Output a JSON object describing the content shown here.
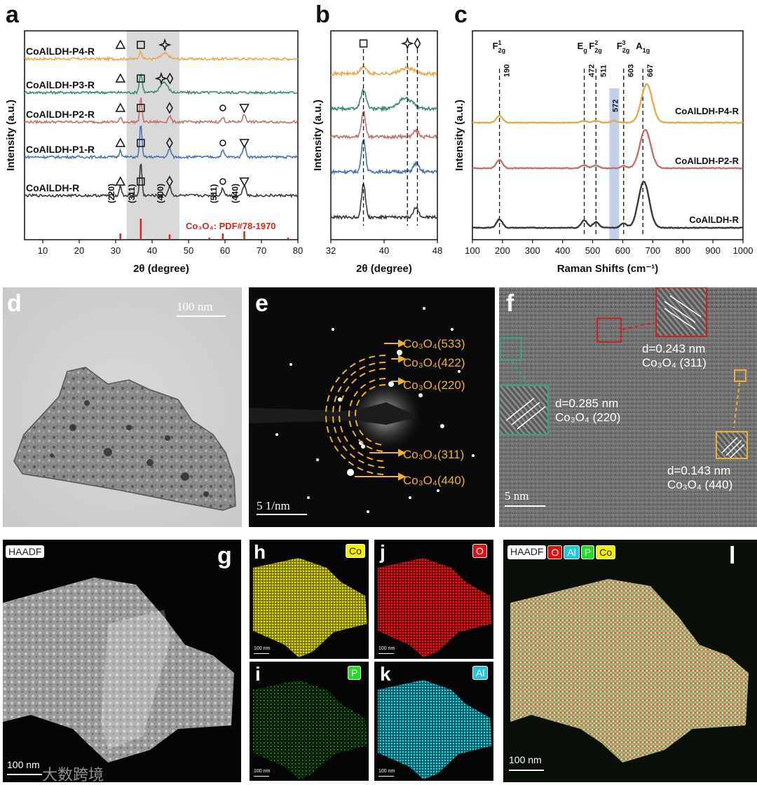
{
  "panel_labels": {
    "a": "a",
    "b": "b",
    "c": "c",
    "d": "d",
    "e": "e",
    "f": "f",
    "g": "g",
    "h": "h",
    "i": "i",
    "j": "j",
    "k": "k",
    "l": "l"
  },
  "colors": {
    "orange": "#E8A94B",
    "green": "#3E8A6A",
    "red": "#C47070",
    "blue": "#4C72B0",
    "black": "#3A3A3A",
    "pdf_red": "#D9261C",
    "shade": "#D9D9D9",
    "ann_orange": "#F0B030",
    "ann_green": "#3AA57B",
    "ann_red": "#CC2222"
  },
  "chart_data": [
    {
      "type": "line",
      "panel": "a",
      "xlabel": "2θ (degree)",
      "ylabel": "Intensity (a.u.)",
      "xlim": [
        5,
        80
      ],
      "xticks": [
        10,
        20,
        30,
        40,
        50,
        60,
        70,
        80
      ],
      "shaded_range": [
        33,
        47.5
      ],
      "series": [
        {
          "name": "CoAlLDH-P4-R",
          "color": "#E8A94B",
          "peaks": [
            {
              "x": 36.9,
              "h": 0.35,
              "w": 0.8
            },
            {
              "x": 43.5,
              "h": 0.25,
              "w": 2.0
            }
          ],
          "markers": [
            "triangle",
            "square",
            "star"
          ]
        },
        {
          "name": "CoAlLDH-P3-R",
          "color": "#3E8A6A",
          "peaks": [
            {
              "x": 36.9,
              "h": 0.9,
              "w": 0.8
            },
            {
              "x": 43.2,
              "h": 0.5,
              "w": 2.0
            }
          ],
          "markers": [
            "triangle",
            "square",
            "star",
            "diamond"
          ]
        },
        {
          "name": "CoAlLDH-P2-R",
          "color": "#C47070",
          "peaks": [
            {
              "x": 31.3,
              "h": 0.2,
              "w": 0.6
            },
            {
              "x": 36.9,
              "h": 1.2,
              "w": 0.6
            },
            {
              "x": 44.8,
              "h": 0.3,
              "w": 0.8
            },
            {
              "x": 59.4,
              "h": 0.2,
              "w": 0.8
            },
            {
              "x": 65.3,
              "h": 0.35,
              "w": 0.9
            }
          ],
          "markers": [
            "triangle",
            "square",
            "diamond",
            "circle",
            "down-triangle"
          ]
        },
        {
          "name": "CoAlLDH-P1-R",
          "color": "#4C72B0",
          "peaks": [
            {
              "x": 31.3,
              "h": 0.35,
              "w": 0.6
            },
            {
              "x": 36.9,
              "h": 1.6,
              "w": 0.6
            },
            {
              "x": 44.8,
              "h": 0.4,
              "w": 0.8
            },
            {
              "x": 59.4,
              "h": 0.3,
              "w": 0.8
            },
            {
              "x": 65.3,
              "h": 0.55,
              "w": 0.9
            }
          ],
          "markers": [
            "triangle",
            "square",
            "diamond",
            "circle",
            "down-triangle"
          ]
        },
        {
          "name": "CoAlLDH-R",
          "color": "#3A3A3A",
          "peaks": [
            {
              "x": 31.3,
              "h": 0.5,
              "w": 0.6
            },
            {
              "x": 36.9,
              "h": 1.6,
              "w": 0.6
            },
            {
              "x": 44.8,
              "h": 0.45,
              "w": 0.8
            },
            {
              "x": 59.4,
              "h": 0.35,
              "w": 0.8
            },
            {
              "x": 65.3,
              "h": 0.5,
              "w": 0.9
            }
          ],
          "markers": [
            "triangle",
            "square",
            "diamond",
            "circle",
            "down-triangle"
          ]
        }
      ],
      "hkl_labels": [
        {
          "x": 31.3,
          "text": "(220)"
        },
        {
          "x": 36.9,
          "text": "(311)"
        },
        {
          "x": 44.8,
          "text": "(400)"
        },
        {
          "x": 59.4,
          "text": "(511)"
        },
        {
          "x": 65.3,
          "text": "(440)"
        }
      ],
      "reference": {
        "label": "Co₃O₄: PDF#78-1970",
        "lines": [
          {
            "x": 31.3,
            "h": 0.3
          },
          {
            "x": 36.9,
            "h": 1.0
          },
          {
            "x": 44.8,
            "h": 0.25
          },
          {
            "x": 55.7,
            "h": 0.1
          },
          {
            "x": 59.4,
            "h": 0.3
          },
          {
            "x": 65.3,
            "h": 0.4
          },
          {
            "x": 77.3,
            "h": 0.1
          }
        ]
      }
    },
    {
      "type": "line",
      "panel": "b",
      "xlabel": "2θ (degree)",
      "ylabel": "Intensity (a.u.)",
      "xlim": [
        32,
        48
      ],
      "xticks": [
        32,
        40,
        48
      ],
      "dashed_lines": [
        36.9,
        43.5,
        45.0
      ],
      "top_markers": [
        {
          "x": 36.9,
          "symbol": "square"
        },
        {
          "x": 43.5,
          "symbol": "star"
        },
        {
          "x": 45.0,
          "symbol": "diamond"
        }
      ]
    },
    {
      "type": "line",
      "panel": "c",
      "xlabel": "Raman Shifts (cm⁻¹)",
      "ylabel": "Intensity (a.u.)",
      "xlim": [
        100,
        1000
      ],
      "xticks": [
        100,
        200,
        300,
        400,
        500,
        600,
        700,
        800,
        900,
        1000
      ],
      "highlight": {
        "x": 572,
        "label": "572"
      },
      "modes": [
        {
          "x": 190,
          "sym": "F",
          "sup": "1",
          "sub": "2g",
          "val": "190"
        },
        {
          "x": 472,
          "sym": "E",
          "sup": "",
          "sub": "g",
          "val": "472"
        },
        {
          "x": 511,
          "sym": "F",
          "sup": "2",
          "sub": "2g",
          "val": "511"
        },
        {
          "x": 603,
          "sym": "F",
          "sup": "3",
          "sub": "2g",
          "val": "603"
        },
        {
          "x": 667,
          "sym": "A",
          "sup": "",
          "sub": "1g",
          "val": "667"
        }
      ],
      "series": [
        {
          "name": "CoAlLDH-P4-R",
          "color": "#E8A94B",
          "peaks": [
            {
              "x": 190,
              "h": 0.18
            },
            {
              "x": 472,
              "h": 0.05
            },
            {
              "x": 511,
              "h": 0.05
            },
            {
              "x": 572,
              "h": 0.05
            },
            {
              "x": 680,
              "h": 1.0
            }
          ]
        },
        {
          "name": "CoAlLDH-P2-R",
          "color": "#C47070",
          "peaks": [
            {
              "x": 190,
              "h": 0.22
            },
            {
              "x": 472,
              "h": 0.08
            },
            {
              "x": 511,
              "h": 0.08
            },
            {
              "x": 603,
              "h": 0.06
            },
            {
              "x": 675,
              "h": 1.0
            }
          ]
        },
        {
          "name": "CoAlLDH-R",
          "color": "#3A3A3A",
          "peaks": [
            {
              "x": 190,
              "h": 0.22
            },
            {
              "x": 472,
              "h": 0.2
            },
            {
              "x": 511,
              "h": 0.15
            },
            {
              "x": 603,
              "h": 0.12
            },
            {
              "x": 670,
              "h": 1.2
            }
          ]
        }
      ]
    }
  ],
  "panel_d": {
    "scalebar": "100 nm"
  },
  "panel_e": {
    "scalebar": "5 1/nm",
    "rings": [
      "Co₃O₄(533)",
      "Co₃O₄(422)",
      "Co₃O₄(220)",
      "Co₃O₄(311)",
      "Co₃O₄(440)"
    ]
  },
  "panel_f": {
    "scalebar": "5 nm",
    "annotations": [
      {
        "d": "d=0.243 nm",
        "plane": "Co₃O₄ (311)"
      },
      {
        "d": "d=0.285 nm",
        "plane": "Co₃O₄ (220)"
      },
      {
        "d": "d=0.143 nm",
        "plane": "Co₃O₄ (440)"
      }
    ]
  },
  "panel_g": {
    "tag": "HAADF",
    "scalebar": "100 nm",
    "watermark": "大数跨境"
  },
  "panel_h": {
    "element": "Co",
    "scalebar": "100 nm"
  },
  "panel_i": {
    "element": "P",
    "scalebar": "100 nm"
  },
  "panel_j": {
    "element": "O",
    "scalebar": "100 nm"
  },
  "panel_k": {
    "element": "Al",
    "scalebar": "100 nm"
  },
  "panel_l": {
    "tags": [
      "HAADF",
      "O",
      "Al",
      "P",
      "Co"
    ],
    "scalebar": "100 nm"
  }
}
